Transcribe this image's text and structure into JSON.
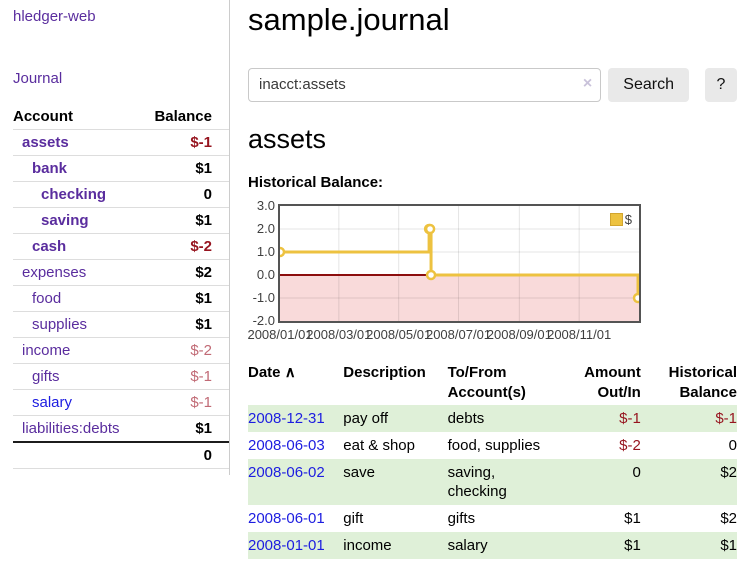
{
  "theme": {
    "link_purple": "#5a2d9e",
    "link_blue": "#1d1de0",
    "neg_strong": "#96141f",
    "neg_muted": "#c16a75",
    "row_green": "#dff0d8",
    "chart_yellow": "#edc240",
    "chart_pink": "#f9dada",
    "chart_zero": "#8c0d0d",
    "btn_bg": "#e9e9e9",
    "border_light": "#dddddd",
    "sidebar_divider": "#cccccc"
  },
  "app": {
    "title": "hledger-web"
  },
  "sidebar": {
    "journal_label": "Journal",
    "accounts_table": {
      "headers": {
        "account": "Account",
        "balance": "Balance"
      },
      "rows": [
        {
          "name": "assets",
          "balance": "$-1",
          "level": 1,
          "bold": true,
          "balance_style": "neg-strong",
          "link_style": "purple"
        },
        {
          "name": "bank",
          "balance": "$1",
          "level": 2,
          "bold": true,
          "balance_style": "",
          "link_style": "purple"
        },
        {
          "name": "checking",
          "balance": "0",
          "level": 3,
          "bold": true,
          "balance_style": "",
          "link_style": "purple"
        },
        {
          "name": "saving",
          "balance": "$1",
          "level": 3,
          "bold": true,
          "balance_style": "",
          "link_style": "purple"
        },
        {
          "name": "cash",
          "balance": "$-2",
          "level": 2,
          "bold": true,
          "balance_style": "neg-strong",
          "link_style": "purple"
        },
        {
          "name": "expenses",
          "balance": "$2",
          "level": 1,
          "bold": false,
          "balance_style": "",
          "link_style": "purple"
        },
        {
          "name": "food",
          "balance": "$1",
          "level": 2,
          "bold": false,
          "balance_style": "",
          "link_style": "purple"
        },
        {
          "name": "supplies",
          "balance": "$1",
          "level": 2,
          "bold": false,
          "balance_style": "",
          "link_style": "purple"
        },
        {
          "name": "income",
          "balance": "$-2",
          "level": 1,
          "bold": false,
          "balance_style": "neg-muted",
          "link_style": "purple"
        },
        {
          "name": "gifts",
          "balance": "$-1",
          "level": 2,
          "bold": false,
          "balance_style": "neg-muted",
          "link_style": "purple"
        },
        {
          "name": "salary",
          "balance": "$-1",
          "level": 2,
          "bold": false,
          "balance_style": "neg-muted",
          "link_style": "blue"
        },
        {
          "name": "liabilities:debts",
          "balance": "$1",
          "level": 1,
          "bold": false,
          "balance_style": "",
          "link_style": "purple"
        }
      ],
      "total": "0"
    }
  },
  "main": {
    "title": "sample.journal",
    "search": {
      "value": "inacct:assets",
      "clear_icon": "×",
      "search_button_label": "Search",
      "help_button_label": "?"
    },
    "account_heading": "assets",
    "chart_label": "Historical Balance:"
  },
  "chart_data": {
    "type": "line",
    "title": "Historical Balance of assets",
    "style": "step-after",
    "x_range": [
      "2008-01-01",
      "2009-01-01"
    ],
    "ylim": [
      -2,
      3
    ],
    "x_ticks": [
      "2008/01/01",
      "2008/03/01",
      "2008/05/01",
      "2008/07/01",
      "2008/09/01",
      "2008/11/01"
    ],
    "y_ticks": [
      "3.0",
      "2.0",
      "1.0",
      "0.0",
      "-1.0",
      "-2.0"
    ],
    "grid": true,
    "negative_region_shaded": true,
    "legend": {
      "position": "top-right",
      "label": "$"
    },
    "series": [
      {
        "name": "$",
        "points": [
          {
            "date": "2008-01-01",
            "value": 1.0
          },
          {
            "date": "2008-06-01",
            "value": 2.0
          },
          {
            "date": "2008-06-02",
            "value": 2.0
          },
          {
            "date": "2008-06-03",
            "value": 0.0
          },
          {
            "date": "2008-12-31",
            "value": -1.0
          }
        ]
      }
    ]
  },
  "register": {
    "headers": {
      "date": "Date",
      "sort_icon": "∧",
      "description": "Description",
      "account": "To/From Account(s)",
      "amount": "Amount Out/In",
      "balance": "Historical Balance"
    },
    "rows": [
      {
        "date": "2008-12-31",
        "description": "pay off",
        "accounts": "debts",
        "amount": "$-1",
        "amount_negative": true,
        "balance": "$-1",
        "balance_negative": true,
        "highlighted": true
      },
      {
        "date": "2008-06-03",
        "description": "eat & shop",
        "accounts": "food, supplies",
        "amount": "$-2",
        "amount_negative": true,
        "balance": "0",
        "balance_negative": false,
        "highlighted": false
      },
      {
        "date": "2008-06-02",
        "description": "save",
        "accounts": "saving, checking",
        "amount": "0",
        "amount_negative": false,
        "balance": "$2",
        "balance_negative": false,
        "highlighted": true
      },
      {
        "date": "2008-06-01",
        "description": "gift",
        "accounts": "gifts",
        "amount": "$1",
        "amount_negative": false,
        "balance": "$2",
        "balance_negative": false,
        "highlighted": false
      },
      {
        "date": "2008-01-01",
        "description": "income",
        "accounts": "salary",
        "amount": "$1",
        "amount_negative": false,
        "balance": "$1",
        "balance_negative": false,
        "highlighted": true
      }
    ]
  }
}
